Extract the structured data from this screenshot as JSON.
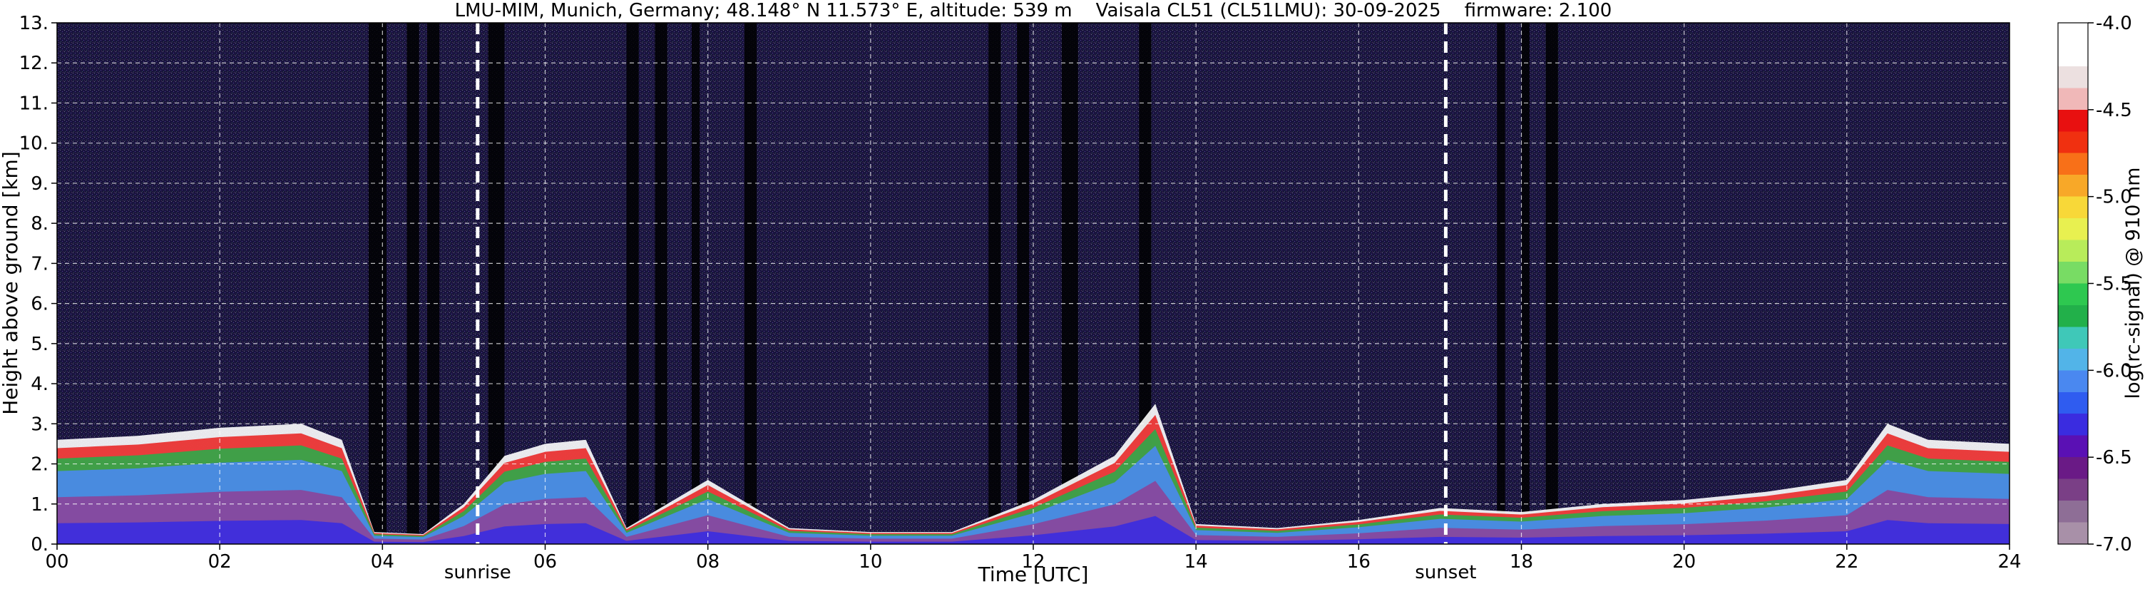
{
  "chart_data": {
    "type": "heatmap",
    "title": "LMU-MIM, Munich, Germany; 48.148° N 11.573° E, altitude: 539 m    Vaisala CL51 (CL51LMU): 30-09-2025    firmware: 2.100",
    "xlabel": "Time [UTC]",
    "ylabel": "Height above ground [km]",
    "xlim": [
      0,
      24
    ],
    "ylim": [
      0,
      13
    ],
    "x_ticks": [
      "00",
      "02",
      "04",
      "06",
      "08",
      "10",
      "12",
      "14",
      "16",
      "18",
      "20",
      "22",
      "24"
    ],
    "y_ticks": [
      "0.",
      "1.",
      "2.",
      "3.",
      "4.",
      "5.",
      "6.",
      "7.",
      "8.",
      "9.",
      "10.",
      "11.",
      "12.",
      "13."
    ],
    "grid": true,
    "colorbar": {
      "label": "log(rc-signal) @ 910 nm",
      "range": [
        -7.0,
        -4.0
      ],
      "ticks": [
        "-4.0",
        "-4.5",
        "-5.0",
        "-5.5",
        "-6.0",
        "-6.5",
        "-7.0"
      ],
      "colors": [
        "#a890a8",
        "#8e6e96",
        "#7a3f86",
        "#6a1a86",
        "#5a10b4",
        "#3a2ce0",
        "#2f5cf0",
        "#4a88f0",
        "#52b4e8",
        "#3fc8b8",
        "#22b04a",
        "#2ec850",
        "#78dc64",
        "#b8ec5a",
        "#e8f050",
        "#f8d838",
        "#f8a828",
        "#f87018",
        "#f03010",
        "#e81010",
        "#f0b8b8",
        "#ece0e0",
        "#ffffff",
        "#ffffff"
      ]
    },
    "markers": [
      {
        "label": "sunrise",
        "time": 5.17
      },
      {
        "label": "sunset",
        "time": 17.07
      }
    ],
    "boundary_layer": {
      "times": [
        0,
        0.5,
        1,
        1.5,
        2,
        2.5,
        3,
        3.5,
        3.9,
        4.5,
        5,
        5.5,
        6,
        6.5,
        7,
        8,
        9,
        10,
        11,
        12,
        13,
        13.5,
        14,
        15,
        16,
        17,
        18,
        19,
        20,
        21,
        22,
        22.5,
        23,
        24
      ],
      "heights": [
        2.6,
        2.65,
        2.7,
        2.8,
        2.9,
        2.95,
        3.0,
        2.6,
        0.3,
        0.25,
        1.0,
        2.2,
        2.5,
        2.6,
        0.4,
        1.6,
        0.4,
        0.3,
        0.3,
        1.1,
        2.2,
        3.5,
        0.5,
        0.4,
        0.6,
        0.9,
        0.8,
        1.0,
        1.1,
        1.3,
        1.6,
        3.0,
        2.6,
        2.5
      ]
    }
  }
}
